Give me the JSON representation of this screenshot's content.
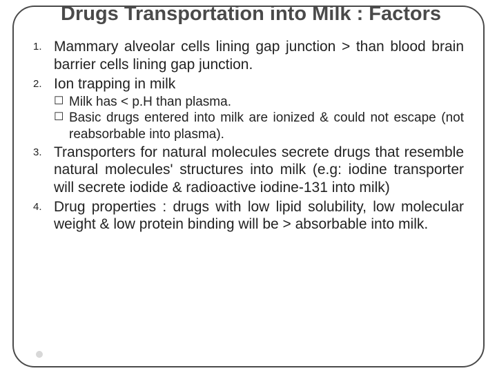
{
  "title": "Drugs Transportation into Milk : Factors",
  "items": [
    {
      "text": "Mammary alveolar cells lining gap junction > than blood brain barrier cells lining gap junction."
    },
    {
      "text": "Ion trapping in milk",
      "sub": [
        "Milk has < p.H than plasma.",
        "Basic drugs entered into milk are ionized & could not escape (not reabsorbable into plasma)."
      ]
    },
    {
      "text": "Transporters for natural molecules secrete drugs that resemble natural molecules' structures into milk (e.g: iodine transporter will secrete iodide & radioactive iodine-131 into milk)"
    },
    {
      "text": "Drug properties : drugs with low lipid solubility, low molecular weight & low protein binding will be > absorbable into milk."
    }
  ],
  "colors": {
    "title": "#4a4a4a",
    "border": "#4a4a4a",
    "text": "#222222",
    "background": "#ffffff",
    "dot": "#d8d8d8"
  },
  "fonts": {
    "title_size": 29,
    "body_size": 21,
    "sub_size": 19,
    "number_size": 15
  }
}
